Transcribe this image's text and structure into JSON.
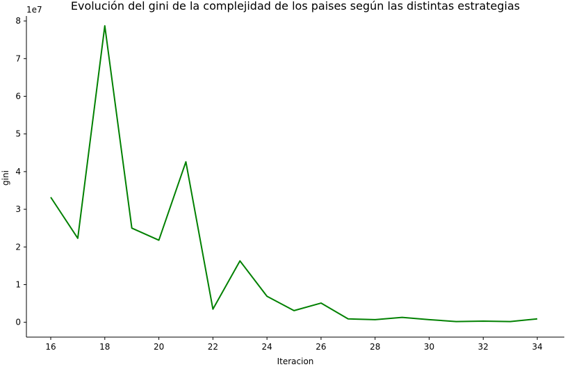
{
  "chart_data": {
    "type": "line",
    "title": "Evolución del gini de la complejidad de los paises según las distintas estrategias",
    "xlabel": "Iteracion",
    "ylabel": "gini",
    "y_offset_text": "1e7",
    "x": [
      16,
      17,
      18,
      19,
      20,
      21,
      22,
      23,
      24,
      25,
      26,
      27,
      28,
      29,
      30,
      31,
      32,
      33,
      34
    ],
    "series": [
      {
        "color": "#008000",
        "values": [
          33200000,
          22300000,
          78700000,
          25000000,
          21800000,
          42600000,
          3500000,
          16300000,
          6900000,
          3100000,
          5100000,
          900000,
          700000,
          1300000,
          700000,
          200000,
          300000,
          200000,
          900000
        ]
      }
    ],
    "xlim": [
      15.1,
      35.0
    ],
    "ylim": [
      -3935000,
      81315000
    ],
    "x_ticks": [
      {
        "value": 16,
        "label": "16"
      },
      {
        "value": 18,
        "label": "18"
      },
      {
        "value": 20,
        "label": "20"
      },
      {
        "value": 22,
        "label": "22"
      },
      {
        "value": 24,
        "label": "24"
      },
      {
        "value": 26,
        "label": "26"
      },
      {
        "value": 28,
        "label": "28"
      },
      {
        "value": 30,
        "label": "30"
      },
      {
        "value": 32,
        "label": "32"
      },
      {
        "value": 34,
        "label": "34"
      }
    ],
    "y_ticks": [
      {
        "value": 0,
        "label": "0"
      },
      {
        "value": 10000000,
        "label": "1"
      },
      {
        "value": 20000000,
        "label": "2"
      },
      {
        "value": 30000000,
        "label": "3"
      },
      {
        "value": 40000000,
        "label": "4"
      },
      {
        "value": 50000000,
        "label": "5"
      },
      {
        "value": 60000000,
        "label": "6"
      },
      {
        "value": 70000000,
        "label": "7"
      },
      {
        "value": 80000000,
        "label": "8"
      }
    ],
    "grid": false,
    "spines": [
      "left",
      "bottom"
    ]
  }
}
